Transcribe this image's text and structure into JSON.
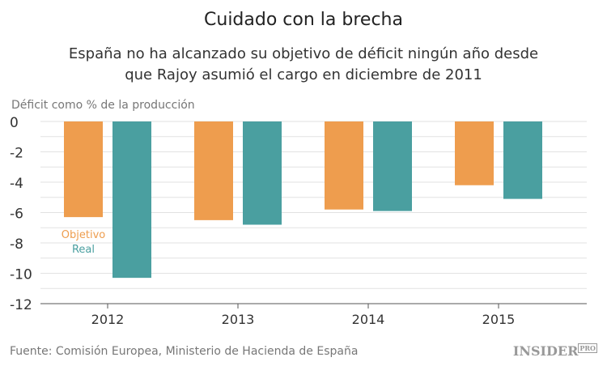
{
  "title": "Cuidado con la brecha",
  "subtitle_line1": "España no ha alcanzado su objetivo de déficit ningún año desde",
  "subtitle_line2": "que Rajoy asumió el cargo en diciembre de 2011",
  "source": "Fuente: Comisión Europea, Ministerio de Hacienda de España",
  "logo": {
    "main": "INSIDER",
    "badge": "PRO"
  },
  "chart_data": {
    "type": "bar",
    "ylabel": "Déficit como % de la producción",
    "categories": [
      "2012",
      "2013",
      "2014",
      "2015"
    ],
    "series": [
      {
        "name": "Objetivo",
        "color": "#EE9D4E",
        "values": [
          -6.3,
          -6.5,
          -5.8,
          -4.2
        ]
      },
      {
        "name": "Real",
        "color": "#4A9FA0",
        "values": [
          -10.3,
          -6.8,
          -5.9,
          -5.1
        ]
      }
    ],
    "ylim": [
      -12,
      0
    ],
    "yticks": [
      0,
      -2,
      -4,
      -6,
      -8,
      -10,
      -12
    ],
    "grid": true,
    "legend": "inside-left"
  }
}
